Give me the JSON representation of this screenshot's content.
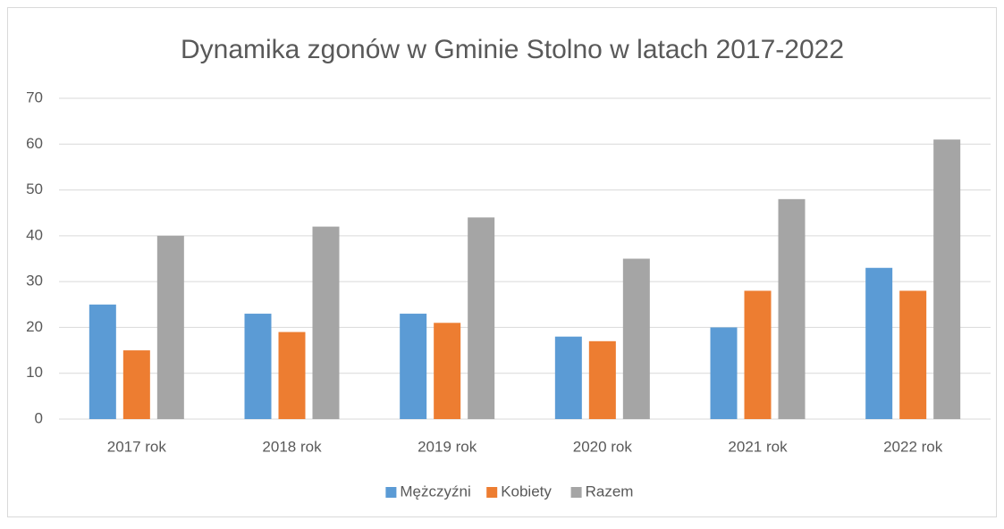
{
  "chart_data": {
    "type": "bar",
    "title": "Dynamika zgonów w Gminie Stolno w latach 2017-2022",
    "categories": [
      "2017 rok",
      "2018 rok",
      "2019 rok",
      "2020 rok",
      "2021 rok",
      "2022 rok"
    ],
    "series": [
      {
        "name": "Mężczyźni",
        "color": "#5b9bd5",
        "values": [
          25,
          23,
          23,
          18,
          20,
          33
        ]
      },
      {
        "name": "Kobiety",
        "color": "#ed7d31",
        "values": [
          15,
          19,
          21,
          17,
          28,
          28
        ]
      },
      {
        "name": "Razem",
        "color": "#a5a5a5",
        "values": [
          40,
          42,
          44,
          35,
          48,
          61
        ]
      }
    ],
    "ylim": [
      0,
      70
    ],
    "yticks": [
      0,
      10,
      20,
      30,
      40,
      50,
      60,
      70
    ],
    "grid": true,
    "legend": "bottom"
  }
}
